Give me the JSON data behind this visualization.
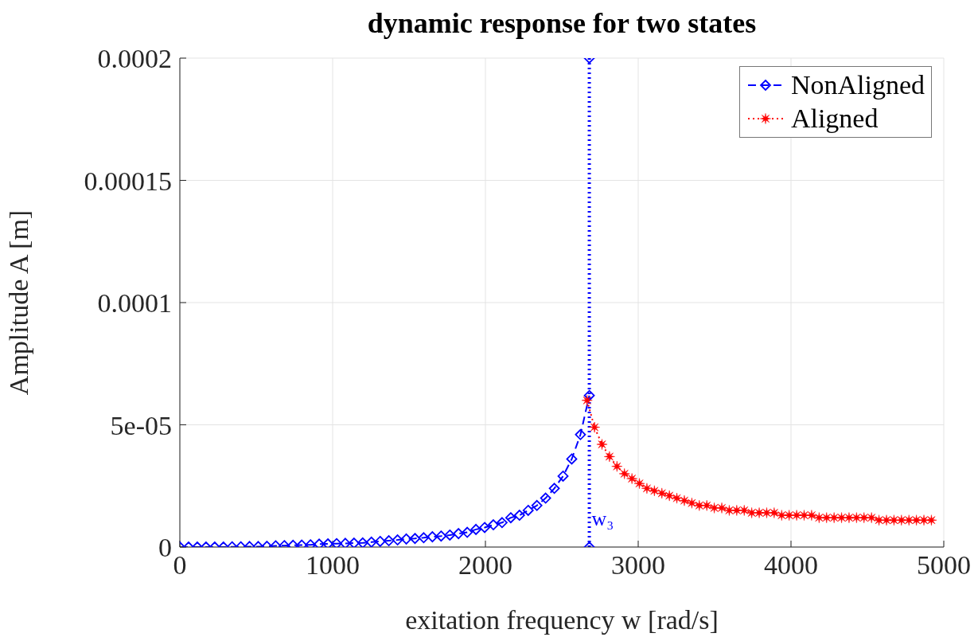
{
  "chart_data": {
    "type": "line",
    "title": "dynamic response for two states",
    "xlabel": "exitation frequency w [rad/s]",
    "ylabel": "Amplitude A [m]",
    "xlim": [
      0,
      5000
    ],
    "xticks": [
      0,
      1000,
      2000,
      3000,
      4000,
      5000
    ],
    "ylim": [
      0,
      0.0002
    ],
    "yticks": [
      0,
      {
        "value": 5e-05,
        "label": "5e-05"
      },
      {
        "value": 0.0001,
        "label": "0.0001"
      },
      {
        "value": 0.00015,
        "label": "0.00015"
      },
      {
        "value": 0.0002,
        "label": "0.0002"
      }
    ],
    "grid": true,
    "legend": "top right",
    "annotations": [
      "w₃"
    ],
    "series": [
      {
        "name": "NonAligned",
        "color": "#0000ff",
        "marker": "diamond",
        "line_style": "dashed",
        "x": [
          0,
          57,
          114,
          171,
          228,
          285,
          342,
          399,
          456,
          513,
          570,
          627,
          684,
          741,
          798,
          855,
          912,
          969,
          1026,
          1083,
          1140,
          1197,
          1254,
          1311,
          1368,
          1425,
          1482,
          1539,
          1596,
          1653,
          1710,
          1767,
          1824,
          1881,
          1938,
          1995,
          2052,
          2109,
          2166,
          2223,
          2280,
          2337,
          2394,
          2451,
          2508,
          2565,
          2622,
          2680
        ],
        "values": [
          0,
          0,
          0,
          0,
          0,
          0,
          1e-07,
          1e-07,
          2e-07,
          2e-07,
          3e-07,
          5e-07,
          6e-07,
          7e-07,
          8e-07,
          9e-07,
          1.2e-06,
          1.3e-06,
          1.4e-06,
          1.5e-06,
          1.6e-06,
          1.7e-06,
          2e-06,
          2.3e-06,
          2.6e-06,
          2.9e-06,
          3.3e-06,
          3.5e-06,
          3.8e-06,
          4.2e-06,
          4.5e-06,
          4.9e-06,
          5.5e-06,
          6e-06,
          7.2e-06,
          8e-06,
          9.1e-06,
          1e-05,
          1.2e-05,
          1.3e-05,
          1.5e-05,
          1.7e-05,
          2e-05,
          2.4e-05,
          2.9e-05,
          3.6e-05,
          4.6e-05,
          6.2e-05
        ]
      },
      {
        "name": "Aligned",
        "color": "#ff0000",
        "marker": "star",
        "line_style": "dotted",
        "x": [
          2665,
          2714,
          2763,
          2812,
          2861,
          2910,
          2959,
          3008,
          3057,
          3106,
          3155,
          3204,
          3253,
          3302,
          3351,
          3400,
          3449,
          3498,
          3547,
          3596,
          3645,
          3694,
          3743,
          3792,
          3841,
          3890,
          3939,
          3988,
          4037,
          4086,
          4135,
          4184,
          4233,
          4282,
          4331,
          4380,
          4429,
          4478,
          4527,
          4576,
          4625,
          4674,
          4723,
          4772,
          4821,
          4870,
          4919
        ],
        "values": [
          6e-05,
          4.9e-05,
          4.2e-05,
          3.7e-05,
          3.3e-05,
          3e-05,
          2.8e-05,
          2.6e-05,
          2.4e-05,
          2.3e-05,
          2.2e-05,
          2.1e-05,
          2e-05,
          1.9e-05,
          1.8e-05,
          1.7e-05,
          1.7e-05,
          1.6e-05,
          1.6e-05,
          1.5e-05,
          1.5e-05,
          1.5e-05,
          1.4e-05,
          1.4e-05,
          1.4e-05,
          1.4e-05,
          1.3e-05,
          1.3e-05,
          1.3e-05,
          1.3e-05,
          1.3e-05,
          1.2e-05,
          1.2e-05,
          1.2e-05,
          1.2e-05,
          1.2e-05,
          1.2e-05,
          1.2e-05,
          1.2e-05,
          1.1e-05,
          1.1e-05,
          1.1e-05,
          1.1e-05,
          1.1e-05,
          1.1e-05,
          1.1e-05,
          1.1e-05
        ]
      },
      {
        "color": "#0000ff",
        "marker": "diamond",
        "line_style": "dotted",
        "x": [
          2680,
          2680
        ],
        "values": [
          0,
          0.0002
        ]
      }
    ]
  }
}
